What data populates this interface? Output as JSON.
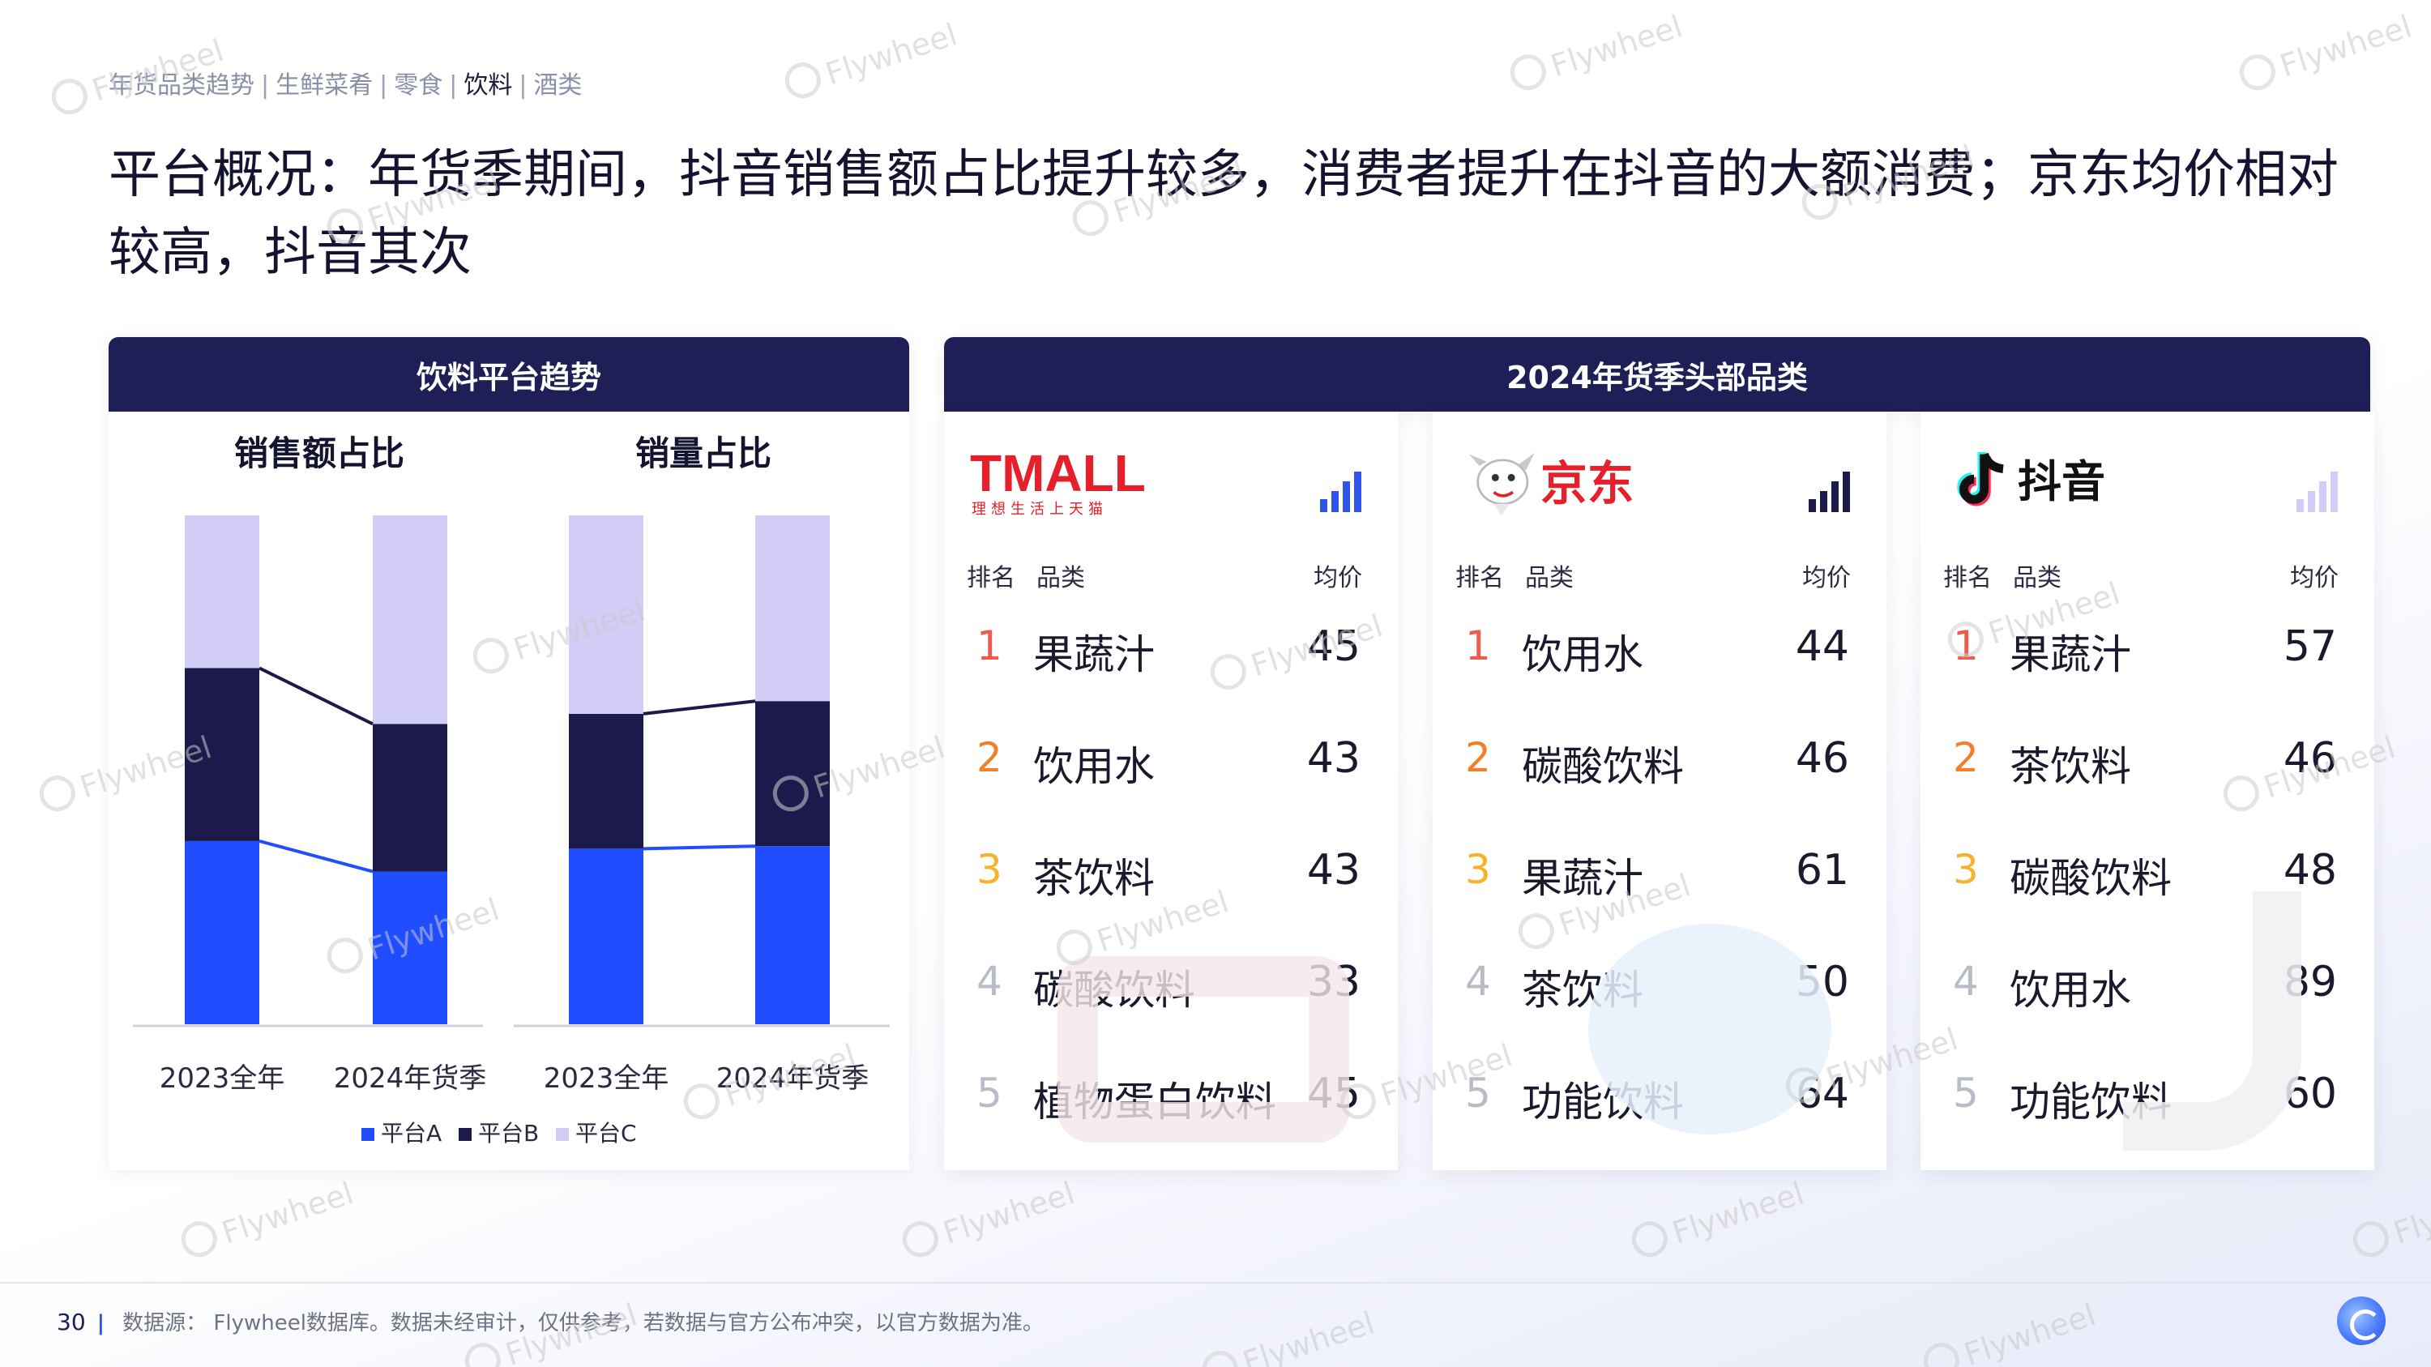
{
  "breadcrumb": {
    "items": [
      "年货品类趋势",
      "生鲜菜肴",
      "零食",
      "饮料",
      "酒类"
    ],
    "separator": "|",
    "active_index": 3
  },
  "headline": "平台概况：年货季期间，抖音销售额占比提升较多，消费者提升在抖音的大额消费；京东均价相对较高，抖音其次",
  "left_panel": {
    "title": "饮料平台趋势"
  },
  "right_panel": {
    "title": "2024年货季头部品类"
  },
  "chart_data": {
    "type": "bar",
    "stacked": true,
    "normalized": true,
    "colors": {
      "平台A": "#1f4dff",
      "平台B": "#1b1a4a",
      "平台C": "#d2cdf7"
    },
    "legend": [
      "平台A",
      "平台B",
      "平台C"
    ],
    "legend_position": "bottom",
    "connector_lines": true,
    "subcharts": [
      {
        "title": "销售额占比",
        "categories": [
          "2023全年",
          "2024年货季"
        ],
        "series": [
          {
            "name": "平台A",
            "values": [
              0.36,
              0.3
            ]
          },
          {
            "name": "平台B",
            "values": [
              0.34,
              0.29
            ]
          },
          {
            "name": "平台C",
            "values": [
              0.3,
              0.41
            ]
          }
        ],
        "ylim": [
          0,
          1
        ]
      },
      {
        "title": "销量占比",
        "categories": [
          "2023全年",
          "2024年货季"
        ],
        "series": [
          {
            "name": "平台A",
            "values": [
              0.345,
              0.35
            ]
          },
          {
            "name": "平台B",
            "values": [
              0.265,
              0.285
            ]
          },
          {
            "name": "平台C",
            "values": [
              0.39,
              0.365
            ]
          }
        ],
        "ylim": [
          0,
          1
        ]
      }
    ]
  },
  "columns": {
    "rank": "排名",
    "category": "品类",
    "price": "均价"
  },
  "rank_colors": [
    "#f05b4f",
    "#f37f2a",
    "#f4b32b",
    "#b8bcc7",
    "#b8bcc7"
  ],
  "platforms": [
    {
      "name": "TMALL",
      "slogan": "理想生活上天猫",
      "logo_color": "#e5202a",
      "rows": [
        {
          "rank": "1",
          "category": "果蔬汁",
          "price": "45"
        },
        {
          "rank": "2",
          "category": "饮用水",
          "price": "43"
        },
        {
          "rank": "3",
          "category": "茶饮料",
          "price": "43"
        },
        {
          "rank": "4",
          "category": "碳酸饮料",
          "price": "33"
        },
        {
          "rank": "5",
          "category": "植物蛋白饮料",
          "price": "45"
        }
      ]
    },
    {
      "name": "京东",
      "logo_color": "#e5202a",
      "rows": [
        {
          "rank": "1",
          "category": "饮用水",
          "price": "44"
        },
        {
          "rank": "2",
          "category": "碳酸饮料",
          "price": "46"
        },
        {
          "rank": "3",
          "category": "果蔬汁",
          "price": "61"
        },
        {
          "rank": "4",
          "category": "茶饮料",
          "price": "50"
        },
        {
          "rank": "5",
          "category": "功能饮料",
          "price": "64"
        }
      ]
    },
    {
      "name": "抖音",
      "logo_color": "#111111",
      "rows": [
        {
          "rank": "1",
          "category": "果蔬汁",
          "price": "57"
        },
        {
          "rank": "2",
          "category": "茶饮料",
          "price": "46"
        },
        {
          "rank": "3",
          "category": "碳酸饮料",
          "price": "48"
        },
        {
          "rank": "4",
          "category": "饮用水",
          "price": "89"
        },
        {
          "rank": "5",
          "category": "功能饮料",
          "price": "60"
        }
      ]
    }
  ],
  "signal_icons": [
    "signal-bars-high-icon",
    "signal-bars-high-icon",
    "signal-bars-low-icon"
  ],
  "watermark": "Flywheel",
  "footer": {
    "page": "30",
    "source": "数据源： Flywheel数据库。数据未经审计，仅供参考，若数据与官方公布冲突，以官方数据为准。"
  }
}
